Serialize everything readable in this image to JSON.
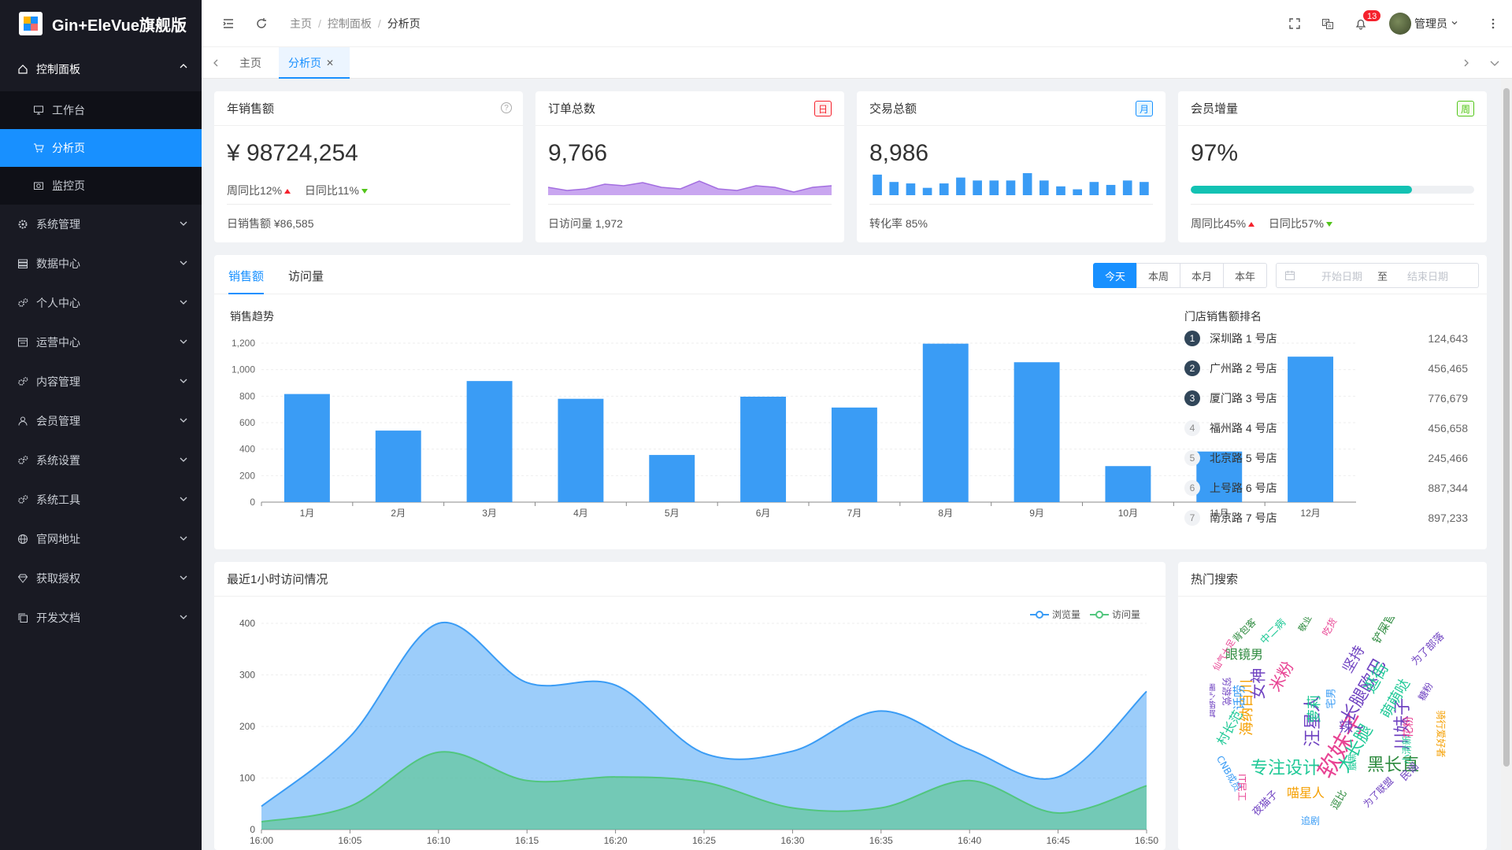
{
  "app": {
    "title": "Gin+EleVue旗舰版"
  },
  "sidebar": {
    "items": [
      {
        "label": "控制面板",
        "icon": "home-icon",
        "expanded": true,
        "children": [
          {
            "label": "工作台",
            "icon": "monitor-icon"
          },
          {
            "label": "分析页",
            "icon": "cart-icon",
            "active": true
          },
          {
            "label": "监控页",
            "icon": "camera-icon"
          }
        ]
      },
      {
        "label": "系统管理",
        "icon": "gear-icon"
      },
      {
        "label": "数据中心",
        "icon": "database-icon"
      },
      {
        "label": "个人中心",
        "icon": "gears-icon"
      },
      {
        "label": "运营中心",
        "icon": "panel-icon"
      },
      {
        "label": "内容管理",
        "icon": "gears-icon"
      },
      {
        "label": "会员管理",
        "icon": "user-icon"
      },
      {
        "label": "系统设置",
        "icon": "gears-icon"
      },
      {
        "label": "系统工具",
        "icon": "gears-icon"
      },
      {
        "label": "官网地址",
        "icon": "globe-icon"
      },
      {
        "label": "获取授权",
        "icon": "diamond-icon"
      },
      {
        "label": "开发文档",
        "icon": "copy-icon"
      }
    ]
  },
  "header": {
    "breadcrumb": [
      "主页",
      "控制面板",
      "分析页"
    ],
    "notification_count": "13",
    "user_name": "管理员"
  },
  "tabs": [
    {
      "label": "主页"
    },
    {
      "label": "分析页",
      "active": true
    }
  ],
  "stats": {
    "annual_sales": {
      "title": "年销售额",
      "value": "¥ 98724,254",
      "weekly": "周同比12%",
      "daily": "日同比11%",
      "footer": "日销售额 ¥86,585"
    },
    "orders": {
      "title": "订单总数",
      "tag": "日",
      "value": "9,766",
      "footer": "日访问量 1,972"
    },
    "transactions": {
      "title": "交易总额",
      "tag": "月",
      "value": "8,986",
      "footer": "转化率 85%",
      "bars": [
        14,
        9,
        8,
        5,
        8,
        12,
        10,
        10,
        10,
        15,
        10,
        6,
        4,
        9,
        7,
        10,
        9
      ]
    },
    "members": {
      "title": "会员增量",
      "tag": "周",
      "value": "97%",
      "progress": 0.78,
      "weekly": "周同比45%",
      "daily": "日同比57%"
    },
    "colors": {
      "day": "#f5222d",
      "month": "#1890ff",
      "week": "#52c41a"
    }
  },
  "sales": {
    "tabs": [
      "销售额",
      "访问量"
    ],
    "periods": [
      "今天",
      "本周",
      "本月",
      "本年"
    ],
    "date_start_placeholder": "开始日期",
    "date_sep": "至",
    "date_end_placeholder": "结束日期",
    "chart_title": "销售趋势",
    "ranking_title": "门店销售额排名",
    "ranking": [
      {
        "rank": "1",
        "name": "深圳路 1 号店",
        "value": "124,643"
      },
      {
        "rank": "2",
        "name": "广州路 2 号店",
        "value": "456,465"
      },
      {
        "rank": "3",
        "name": "厦门路 3 号店",
        "value": "776,679"
      },
      {
        "rank": "4",
        "name": "福州路 4 号店",
        "value": "456,658"
      },
      {
        "rank": "5",
        "name": "北京路 5 号店",
        "value": "245,466"
      },
      {
        "rank": "6",
        "name": "上号路 6 号店",
        "value": "887,344"
      },
      {
        "rank": "7",
        "name": "南京路 7 号店",
        "value": "897,233"
      }
    ]
  },
  "visits": {
    "title": "最近1小时访问情况",
    "legend": [
      "浏览量",
      "访问量"
    ]
  },
  "hot": {
    "title": "热门搜索"
  },
  "chart_data": [
    {
      "type": "bar",
      "title": "销售趋势",
      "categories": [
        "1月",
        "2月",
        "3月",
        "4月",
        "5月",
        "6月",
        "7月",
        "8月",
        "9月",
        "10月",
        "11月",
        "12月"
      ],
      "values": [
        816,
        540,
        914,
        780,
        356,
        796,
        714,
        1196,
        1056,
        272,
        382,
        1098
      ],
      "ylim": [
        0,
        1200
      ],
      "yticks": [
        0,
        200,
        400,
        600,
        800,
        1000,
        1200
      ],
      "color": "#3a9cf5"
    },
    {
      "type": "area",
      "title": "最近1小时访问情况",
      "x": [
        "16:00",
        "16:05",
        "16:10",
        "16:15",
        "16:20",
        "16:25",
        "16:30",
        "16:35",
        "16:40",
        "16:45",
        "16:50"
      ],
      "series": [
        {
          "name": "浏览量",
          "values": [
            45,
            180,
            400,
            285,
            280,
            148,
            152,
            230,
            155,
            102,
            268
          ],
          "color": "#3a9cf5"
        },
        {
          "name": "访问量",
          "values": [
            15,
            45,
            150,
            95,
            102,
            92,
            42,
            42,
            95,
            32,
            85
          ],
          "color": "#52c67e"
        }
      ],
      "ylim": [
        0,
        400
      ],
      "yticks": [
        0,
        100,
        200,
        300,
        400
      ]
    }
  ]
}
